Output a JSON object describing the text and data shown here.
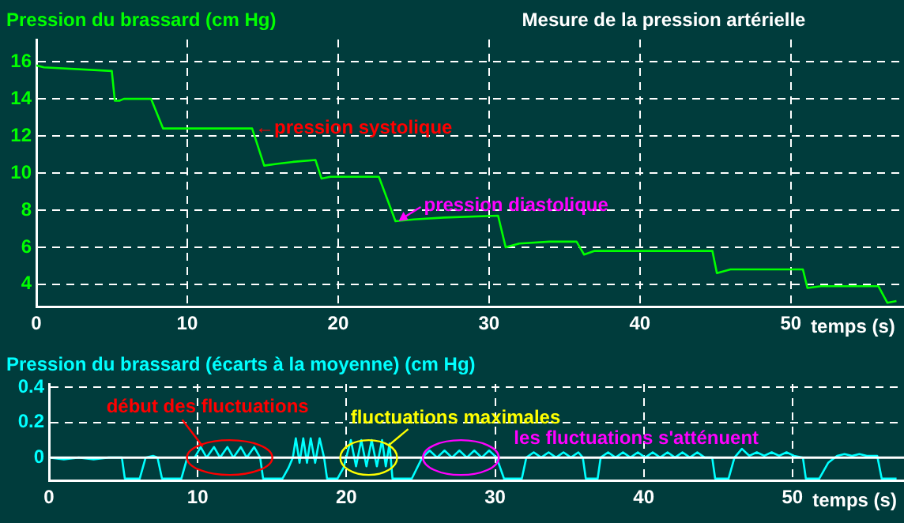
{
  "chart_data": [
    {
      "type": "line",
      "title": "Mesure de la pression artérielle",
      "ylabel": "Pression du brassard (cm Hg)",
      "xlabel": "temps (s)",
      "xlim": [
        0,
        57.5
      ],
      "xticks": [
        0,
        10,
        20,
        30,
        40,
        50
      ],
      "ylim": [
        2.8,
        17.2
      ],
      "yticks": [
        4,
        6,
        8,
        10,
        12,
        14,
        16
      ],
      "grid": true,
      "marker": "none",
      "line_style": "solid",
      "legend": false,
      "series": [
        {
          "color": "#00ff00",
          "x": [
            0,
            0.5,
            5.0,
            5.2,
            5.5,
            5.8,
            7.6,
            8.4,
            14.3,
            15.1,
            16,
            17,
            18.5,
            18.9,
            19.5,
            22.7,
            23.8,
            25,
            27,
            30.6,
            31.1,
            32,
            34,
            35.8,
            36.3,
            37,
            44.8,
            45.1,
            46,
            50.8,
            51.1,
            52,
            55.8,
            56.4,
            57
          ],
          "values": [
            15.8,
            15.7,
            15.5,
            13.9,
            13.9,
            14.0,
            14.0,
            12.4,
            12.4,
            10.4,
            10.5,
            10.6,
            10.7,
            9.7,
            9.8,
            9.8,
            7.4,
            7.5,
            7.6,
            7.7,
            6.0,
            6.2,
            6.3,
            6.3,
            5.6,
            5.8,
            5.8,
            4.6,
            4.8,
            4.8,
            3.8,
            3.9,
            3.9,
            3.0,
            3.1
          ]
        }
      ],
      "annotations": [
        {
          "text": "←pression systolique",
          "x": 14.3,
          "y": 12.4
        },
        {
          "text": "pression diastolique",
          "x": 23.8,
          "y": 7.4
        }
      ]
    },
    {
      "type": "line",
      "ylabel": "Pression du brassard (écarts à la moyenne) (cm Hg)",
      "xlabel": "temps (s)",
      "xlim": [
        0,
        57.5
      ],
      "xticks": [
        0,
        10,
        20,
        30,
        40,
        50
      ],
      "ylim": [
        -0.13,
        0.42
      ],
      "yticks": [
        0,
        0.2,
        0.4
      ],
      "grid": true,
      "marker": "none",
      "line_style": "solid",
      "legend": false,
      "ref_lines": [
        {
          "axis": "y",
          "value": 0,
          "color": "#ffffff"
        }
      ],
      "series": [
        {
          "color": "#00ffff",
          "x": [
            0,
            1,
            2,
            3,
            4,
            4.9,
            5.1,
            6.1,
            6.5,
            7.0,
            7.3,
            7.6,
            8.9,
            9.3,
            9.8,
            10.2,
            10.6,
            11.1,
            11.5,
            12.0,
            12.4,
            12.9,
            13.3,
            13.8,
            14.2,
            14.4,
            15.7,
            16.1,
            16.4,
            16.6,
            16.85,
            17.1,
            17.35,
            17.6,
            17.9,
            18.2,
            18.5,
            18.7,
            19.4,
            19.8,
            20.3,
            20.65,
            21.0,
            21.35,
            21.7,
            22.05,
            22.4,
            22.65,
            22.9,
            23.1,
            24.4,
            25.1,
            25.6,
            26.1,
            26.6,
            27.1,
            27.6,
            28.1,
            28.6,
            29.1,
            29.6,
            30.1,
            30.6,
            31.8,
            32.1,
            32.6,
            33.1,
            33.6,
            34.1,
            34.6,
            35.1,
            35.6,
            35.9,
            36.1,
            36.9,
            37.1,
            37.6,
            38.1,
            38.6,
            39.1,
            39.6,
            40.1,
            40.6,
            41.1,
            41.6,
            42.1,
            42.6,
            43.1,
            43.6,
            44.1,
            44.6,
            44.8,
            45.7,
            46.1,
            46.6,
            47.1,
            47.6,
            48.1,
            48.6,
            49.1,
            49.6,
            50.1,
            50.7,
            50.9,
            51.8,
            52.4,
            53,
            53.5,
            54,
            54.5,
            55,
            55.7,
            56,
            57
          ],
          "values": [
            0,
            -0.01,
            0,
            -0.01,
            0,
            0,
            -0.12,
            -0.12,
            0,
            0.01,
            0,
            -0.12,
            -0.12,
            0,
            0,
            0.06,
            0,
            0.06,
            0,
            0.06,
            0,
            0.06,
            0,
            0.06,
            0,
            -0.12,
            -0.12,
            -0.06,
            0,
            0.11,
            -0.03,
            0.11,
            -0.03,
            0.11,
            -0.03,
            0.11,
            0,
            -0.12,
            -0.12,
            -0.06,
            0.1,
            -0.05,
            0.1,
            -0.05,
            0.1,
            -0.05,
            0.1,
            -0.05,
            0.08,
            -0.12,
            -0.12,
            0,
            0.04,
            0,
            0.04,
            0,
            0.04,
            0,
            0.04,
            0,
            0.04,
            0,
            -0.12,
            -0.12,
            0,
            0.03,
            0,
            0.03,
            0,
            0.03,
            0,
            0.03,
            0,
            -0.12,
            -0.12,
            0,
            0.03,
            0,
            0.03,
            0,
            0.03,
            0,
            0.03,
            0,
            0.03,
            0,
            0.03,
            0,
            0.03,
            0,
            0,
            -0.12,
            -0.12,
            0,
            0.05,
            0.01,
            0.03,
            0.01,
            0.03,
            0.01,
            0.03,
            0.01,
            0,
            -0.12,
            -0.12,
            -0.03,
            0.01,
            0.02,
            0.01,
            0.02,
            0.01,
            0.01,
            -0.12,
            -0.12
          ]
        }
      ],
      "annotations": [
        {
          "text": "début des fluctuations",
          "x": 12.15,
          "y": 0
        },
        {
          "text": "fluctuations maximales",
          "x": 21.5,
          "y": 0
        },
        {
          "text": "les fluctuations s'atténuent",
          "x": 27.7,
          "y": 0
        }
      ]
    }
  ]
}
